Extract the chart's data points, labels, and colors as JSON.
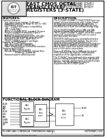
{
  "bg_color": "#f0f0f0",
  "border_color": "#000000",
  "title_line1": "FAST CMOS OCTAL",
  "title_line2": "TRANSCEIVER/",
  "title_line3": "REGISTERS (3-STATE)",
  "part_num1": "IDT54/74FCT646ATI  IDT54FCT",
  "part_num2": "IDT54/74FCT648ATI  IDT74FCT",
  "part_num3": "IDT54/74FCT841ATI  IDT74FCT",
  "logo_text": "IDT",
  "company_text": "Integrated Device Technology, Inc.",
  "features_title": "FEATURES:",
  "description_title": "DESCRIPTION:",
  "block_diagram_title": "FUNCTIONAL BLOCK DIAGRAM",
  "footer_left": "MILITARY AND COMMERCIAL TEMPERATURE RANGES",
  "footer_right": "SEPTEMBER 1998",
  "footer_page": "1",
  "footer_ds": "DS02-20001",
  "features_lines": [
    "Common features:",
    " - Low input-output leakage (1uA max.)",
    " - Extended commercial range of -40C to +85C",
    " - CMOS power levels",
    " - True TTL input and output compatibility",
    "    VIH = 2.0V (typ.)",
    "    VOL = 0.5V (typ.)",
    " - Meets or exceeds JEDEC standard 18 specs",
    " - Product available in industrial 5 and in",
    "   production Enhanced versions",
    " - Military product compliant to MIL-STD-883,",
    "   Class B and CMOS tested (upon request)",
    " - Available in DIP, SOIC, SSOP, SOIC,",
    "   TSSOP, CERPACK and LCC packages",
    "Features for FCT646/647:",
    " - Std., A, C and D speed grades",
    " - High-drive outputs (>64mA typ.)",
    " - Power disable outputs current low insertion",
    "Features for FCT648/T:",
    " - Std., A (FAST) speed grades",
    " - Resistor outputs 2 ohms typ. 100mA (Std.)",
    "                    1.5mA typ. 100mA (A)",
    " - Reduced system switching noise"
  ],
  "desc_lines": [
    "The FCT648/FCT648AT FCT648 FCT848 functions",
    "consist of a bus transceiver with 3-state Output",
    "for Read and control circuitry designed for",
    "multiplexed transmission of data directly from",
    "the A-Bus Out or from the internal storage regs.",
    "",
    "The FCT648/FCT648AT utilize OAB and SBA",
    "signals to control the transceiver functions.",
    "The FCT648/FCT648AT FCT848T utilize the enable",
    "control (B) and direction (DIR) pins to control",
    "the transceiver functions.",
    "",
    "IDT4/IDTM-CATH parts may provide/latch/select",
    "either time of 40/60 (BS) models. The circuitry",
    "used for select control optimization the",
    "hysteresis-boosting gate ensures non-multiplexer",
    "during transition between stored and real-time",
    "data. A (DIR) input level selects real-time data",
    "and a HIGH selects stored data.",
    "",
    "Data on A (A/B-Bus Out or SAB, can be stored",
    "in the internal 8 flip-flops by (FWB) outputs",
    "regardless of the appropriate conditions.",
    "",
    "The FCT648xT have balanced drive outputs with",
    "current limiting resistors. This offers low ground",
    "bounce, minimal unidirectional-controlled output",
    "fall time. The filecell parts are plug-in",
    "replacements for FCT648T parts."
  ],
  "left_signals": [
    "A1-A8",
    "OAB",
    "SAB",
    "B1-B8",
    "OBB",
    "SBB",
    "CLKAB",
    "CLKBA",
    "DIR"
  ],
  "left_y": [
    63,
    58,
    53,
    48,
    43,
    38,
    33,
    28,
    23
  ]
}
